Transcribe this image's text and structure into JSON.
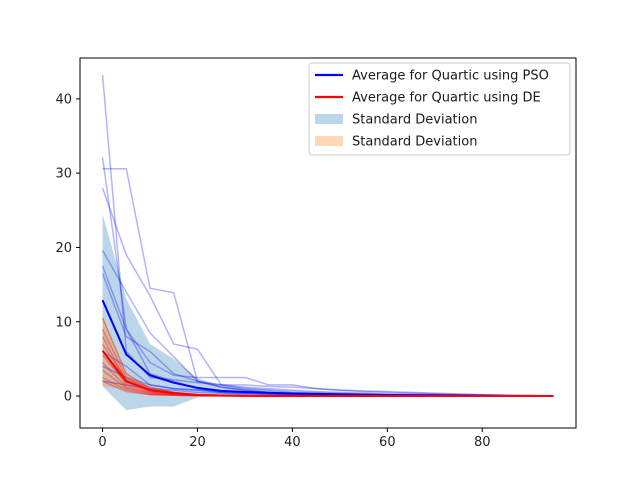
{
  "chart_data": {
    "type": "line",
    "title": "",
    "xlabel": "",
    "ylabel": "",
    "xlim": [
      -4.75,
      99.75
    ],
    "ylim": [
      -4.3,
      45.5
    ],
    "x_ticks": [
      0,
      20,
      40,
      60,
      80
    ],
    "y_ticks": [
      0,
      10,
      20,
      30,
      40
    ],
    "grid": false,
    "legend_position": "top-right",
    "legend": [
      {
        "label": "Average for Quartic using PSO",
        "kind": "line",
        "color": "#0000ff"
      },
      {
        "label": "Average for Quartic using DE",
        "kind": "line",
        "color": "#ff0000"
      },
      {
        "label": "Standard Deviation",
        "kind": "patch",
        "color": "#1f77b4"
      },
      {
        "label": "Standard Deviation",
        "kind": "patch",
        "color": "#ff7f0e"
      }
    ],
    "x": [
      0,
      5,
      10,
      15,
      20,
      25,
      30,
      35,
      40,
      45,
      50,
      55,
      60,
      65,
      70,
      75,
      80,
      85,
      90,
      95
    ],
    "pso_runs": [
      [
        43.2,
        6.0,
        2.5,
        2.2,
        1.8,
        1.5,
        1.2,
        1.0,
        0.8,
        0.6,
        0.5,
        0.4,
        0.3,
        0.25,
        0.2,
        0.15,
        0.1,
        0.05,
        0.02,
        0.0
      ],
      [
        32.1,
        9.0,
        3.0,
        2.0,
        1.0,
        0.5,
        0.4,
        0.3,
        0.2,
        0.15,
        0.1,
        0.08,
        0.05,
        0.03,
        0.02,
        0.01,
        0.0,
        0.0,
        0.0,
        0.0
      ],
      [
        30.6,
        30.6,
        14.5,
        13.9,
        2.0,
        1.2,
        0.8,
        0.5,
        0.4,
        0.3,
        0.2,
        0.15,
        0.1,
        0.08,
        0.05,
        0.03,
        0.02,
        0.01,
        0.0,
        0.0
      ],
      [
        28.0,
        19.0,
        13.5,
        7.0,
        6.3,
        1.5,
        1.0,
        0.8,
        0.5,
        0.4,
        0.3,
        0.2,
        0.15,
        0.1,
        0.08,
        0.05,
        0.03,
        0.02,
        0.01,
        0.0
      ],
      [
        19.6,
        14.0,
        8.5,
        5.3,
        2.0,
        1.2,
        0.8,
        0.5,
        0.3,
        0.2,
        0.15,
        0.1,
        0.08,
        0.05,
        0.03,
        0.02,
        0.01,
        0.0,
        0.0,
        0.0
      ],
      [
        17.5,
        9.0,
        4.5,
        2.8,
        2.5,
        2.5,
        2.5,
        1.5,
        1.5,
        1.0,
        0.8,
        0.6,
        0.5,
        0.4,
        0.3,
        0.2,
        0.15,
        0.1,
        0.05,
        0.0
      ],
      [
        16.5,
        8.0,
        6.0,
        3.0,
        2.0,
        1.5,
        1.5,
        1.3,
        1.2,
        1.0,
        0.8,
        0.7,
        0.6,
        0.5,
        0.4,
        0.3,
        0.2,
        0.1,
        0.05,
        0.0
      ],
      [
        6.0,
        4.0,
        1.5,
        1.0,
        0.8,
        0.5,
        0.4,
        0.3,
        0.2,
        0.15,
        0.1,
        0.08,
        0.05,
        0.03,
        0.02,
        0.01,
        0.0,
        0.0,
        0.0,
        0.0
      ],
      [
        4.0,
        2.5,
        1.5,
        1.0,
        0.8,
        0.6,
        0.5,
        0.4,
        0.3,
        0.2,
        0.15,
        0.1,
        0.08,
        0.05,
        0.03,
        0.02,
        0.01,
        0.0,
        0.0,
        0.0
      ],
      [
        2.0,
        1.5,
        1.0,
        0.8,
        0.5,
        0.4,
        0.3,
        0.2,
        0.15,
        0.1,
        0.08,
        0.05,
        0.03,
        0.02,
        0.01,
        0.0,
        0.0,
        0.0,
        0.0,
        0.0
      ]
    ],
    "de_runs": [
      [
        10.5,
        3.0,
        1.0,
        0.5,
        0.2,
        0.1,
        0.05,
        0.02,
        0.01,
        0.0,
        0.0,
        0.0,
        0.0,
        0.0,
        0.0,
        0.0,
        0.0,
        0.0,
        0.0,
        0.0
      ],
      [
        9.0,
        2.5,
        0.8,
        0.4,
        0.15,
        0.08,
        0.04,
        0.02,
        0.01,
        0.0,
        0.0,
        0.0,
        0.0,
        0.0,
        0.0,
        0.0,
        0.0,
        0.0,
        0.0,
        0.0
      ],
      [
        8.0,
        2.0,
        0.6,
        0.3,
        0.12,
        0.06,
        0.03,
        0.01,
        0.0,
        0.0,
        0.0,
        0.0,
        0.0,
        0.0,
        0.0,
        0.0,
        0.0,
        0.0,
        0.0,
        0.0
      ],
      [
        7.0,
        2.2,
        1.2,
        0.5,
        0.2,
        0.1,
        0.05,
        0.02,
        0.01,
        0.0,
        0.0,
        0.0,
        0.0,
        0.0,
        0.0,
        0.0,
        0.0,
        0.0,
        0.0,
        0.0
      ],
      [
        6.0,
        1.5,
        0.5,
        0.25,
        0.1,
        0.05,
        0.02,
        0.01,
        0.0,
        0.0,
        0.0,
        0.0,
        0.0,
        0.0,
        0.0,
        0.0,
        0.0,
        0.0,
        0.0,
        0.0
      ],
      [
        5.5,
        1.8,
        0.7,
        0.3,
        0.1,
        0.05,
        0.02,
        0.01,
        0.0,
        0.0,
        0.0,
        0.0,
        0.0,
        0.0,
        0.0,
        0.0,
        0.0,
        0.0,
        0.0,
        0.0
      ],
      [
        4.5,
        1.2,
        0.4,
        0.2,
        0.08,
        0.04,
        0.02,
        0.01,
        0.0,
        0.0,
        0.0,
        0.0,
        0.0,
        0.0,
        0.0,
        0.0,
        0.0,
        0.0,
        0.0,
        0.0
      ],
      [
        3.5,
        1.0,
        0.3,
        0.15,
        0.06,
        0.03,
        0.01,
        0.0,
        0.0,
        0.0,
        0.0,
        0.0,
        0.0,
        0.0,
        0.0,
        0.0,
        0.0,
        0.0,
        0.0,
        0.0
      ],
      [
        2.5,
        0.8,
        0.2,
        0.1,
        0.05,
        0.02,
        0.01,
        0.0,
        0.0,
        0.0,
        0.0,
        0.0,
        0.0,
        0.0,
        0.0,
        0.0,
        0.0,
        0.0,
        0.0,
        0.0
      ],
      [
        2.0,
        0.6,
        0.2,
        0.1,
        0.04,
        0.02,
        0.01,
        0.0,
        0.0,
        0.0,
        0.0,
        0.0,
        0.0,
        0.0,
        0.0,
        0.0,
        0.0,
        0.0,
        0.0,
        0.0
      ]
    ],
    "pso_avg": [
      12.9,
      5.6,
      2.8,
      1.8,
      1.1,
      0.7,
      0.55,
      0.45,
      0.35,
      0.3,
      0.25,
      0.2,
      0.15,
      0.12,
      0.1,
      0.08,
      0.05,
      0.03,
      0.02,
      0.0
    ],
    "pso_std": [
      11.6,
      7.5,
      4.2,
      3.2,
      1.3,
      0.7,
      0.6,
      0.45,
      0.4,
      0.3,
      0.25,
      0.2,
      0.15,
      0.12,
      0.1,
      0.08,
      0.06,
      0.04,
      0.02,
      0.0
    ],
    "de_avg": [
      6.1,
      2.0,
      0.8,
      0.4,
      0.15,
      0.07,
      0.04,
      0.02,
      0.01,
      0.0,
      0.0,
      0.0,
      0.0,
      0.0,
      0.0,
      0.0,
      0.0,
      0.0,
      0.0,
      0.0
    ],
    "de_std": [
      4.7,
      1.2,
      0.4,
      0.2,
      0.08,
      0.04,
      0.02,
      0.01,
      0.0,
      0.0,
      0.0,
      0.0,
      0.0,
      0.0,
      0.0,
      0.0,
      0.0,
      0.0,
      0.0,
      0.0
    ],
    "colors": {
      "pso_run": "#0000ff",
      "de_run": "#ff0000",
      "pso_avg": "#0000ff",
      "de_avg": "#ff0000",
      "pso_band": "#1f77b4",
      "de_band": "#ff7f0e",
      "axis": "#000000"
    }
  }
}
